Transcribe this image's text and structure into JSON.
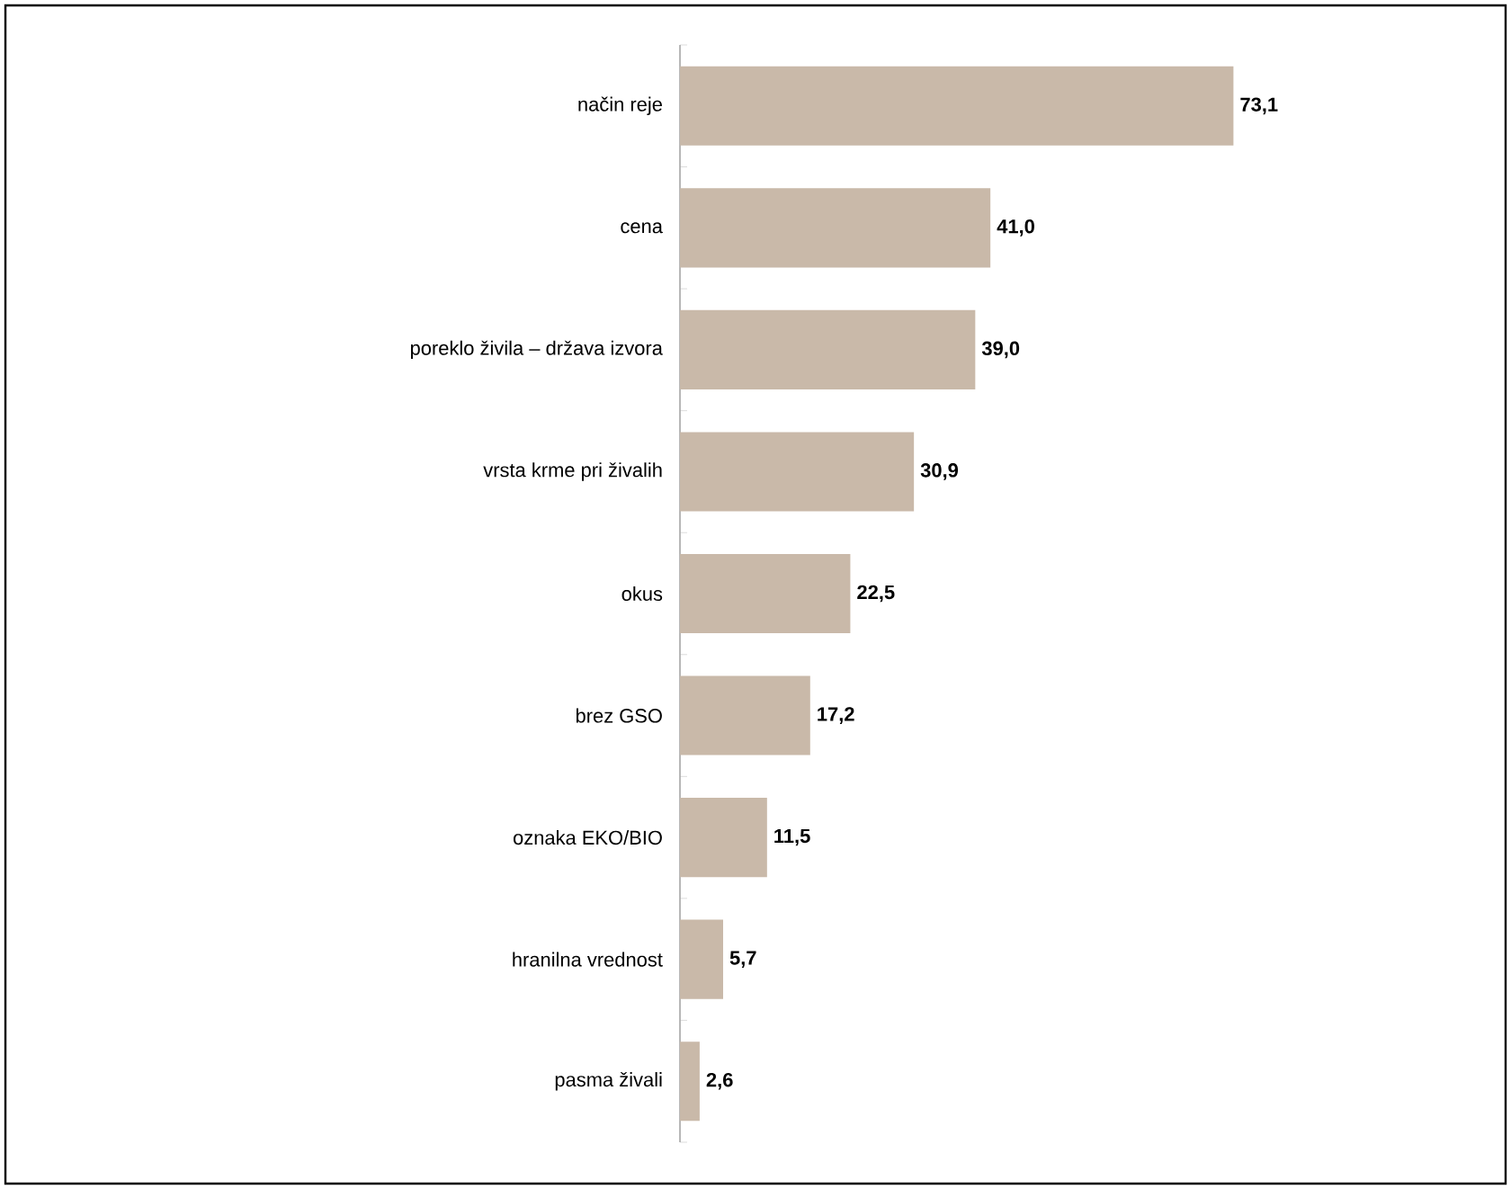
{
  "chart_data": {
    "type": "bar",
    "orientation": "horizontal",
    "categories": [
      "način reje",
      "cena",
      "poreklo živila – država izvora",
      "vrsta krme pri živalih",
      "okus",
      "brez GSO",
      "oznaka EKO/BIO",
      "hranilna vrednost",
      "pasma živali"
    ],
    "values": [
      73.1,
      41.0,
      39.0,
      30.9,
      22.5,
      17.2,
      11.5,
      5.7,
      2.6
    ],
    "value_labels": [
      "73,1",
      "41,0",
      "39,0",
      "30,9",
      "22,5",
      "17,2",
      "11,5",
      "5,7",
      "2,6"
    ],
    "color": "#c9b9a9"
  }
}
